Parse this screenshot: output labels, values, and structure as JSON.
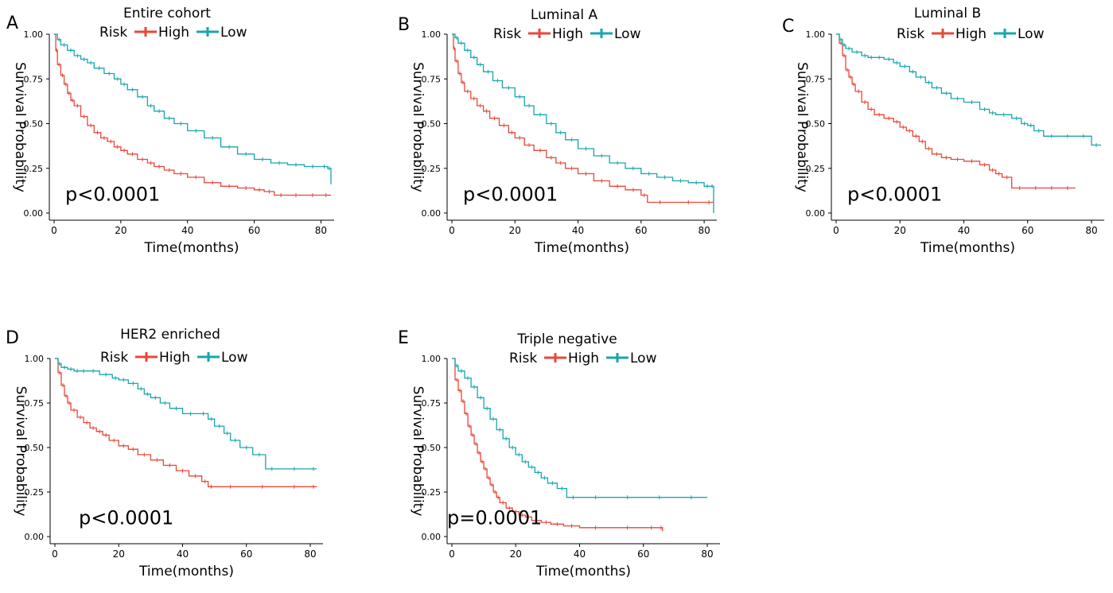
{
  "colors": {
    "high": "#e8473a",
    "low": "#17a6ad",
    "axis": "#000000"
  },
  "chart_data": [
    {
      "type": "line",
      "panel_label": "A",
      "title": "Entire cohort",
      "xlabel": "Time(months)",
      "ylabel": "Survival Probability",
      "xlim": [
        0,
        83
      ],
      "ylim": [
        0,
        1
      ],
      "x_ticks": [
        0,
        20,
        40,
        60,
        80
      ],
      "y_ticks": [
        0.0,
        0.25,
        0.5,
        0.75,
        1.0
      ],
      "y_tick_labels": [
        "0.00",
        "0.25",
        "0.50",
        "0.75",
        "1.00"
      ],
      "legend_title": "Risk",
      "p_value": "p<0.0001",
      "series": [
        {
          "name": "High",
          "color": "#e8473a",
          "x": [
            0,
            0.5,
            1,
            2,
            3,
            4,
            5,
            6,
            8,
            10,
            12,
            14,
            16,
            18,
            20,
            22,
            25,
            28,
            30,
            33,
            36,
            40,
            45,
            50,
            55,
            60,
            63,
            66,
            70,
            75,
            80,
            83
          ],
          "y": [
            1.0,
            0.91,
            0.83,
            0.77,
            0.72,
            0.67,
            0.63,
            0.6,
            0.54,
            0.49,
            0.45,
            0.42,
            0.4,
            0.37,
            0.35,
            0.33,
            0.3,
            0.28,
            0.26,
            0.24,
            0.22,
            0.2,
            0.17,
            0.15,
            0.14,
            0.13,
            0.12,
            0.1,
            0.1,
            0.1,
            0.1,
            0.1
          ]
        },
        {
          "name": "Low",
          "color": "#17a6ad",
          "x": [
            0,
            1,
            2,
            4,
            6,
            8,
            10,
            12,
            15,
            18,
            20,
            22,
            25,
            28,
            30,
            33,
            36,
            40,
            45,
            50,
            55,
            60,
            65,
            70,
            75,
            80,
            82,
            83
          ],
          "y": [
            1.0,
            0.97,
            0.94,
            0.91,
            0.88,
            0.86,
            0.84,
            0.81,
            0.78,
            0.75,
            0.72,
            0.69,
            0.65,
            0.6,
            0.57,
            0.53,
            0.5,
            0.46,
            0.42,
            0.37,
            0.33,
            0.3,
            0.28,
            0.27,
            0.26,
            0.26,
            0.25,
            0.16
          ]
        }
      ]
    },
    {
      "type": "line",
      "panel_label": "B",
      "title": "Luminal A",
      "xlabel": "Time(months)",
      "ylabel": "Survival Probability",
      "xlim": [
        0,
        83
      ],
      "ylim": [
        0,
        1
      ],
      "x_ticks": [
        0,
        20,
        40,
        60,
        80
      ],
      "y_ticks": [
        0.0,
        0.25,
        0.5,
        0.75,
        1.0
      ],
      "y_tick_labels": [
        "0.00",
        "0.25",
        "0.50",
        "0.75",
        "1.00"
      ],
      "legend_title": "Risk",
      "p_value": "p<0.0001",
      "series": [
        {
          "name": "High",
          "color": "#e8473a",
          "x": [
            0,
            0.5,
            1,
            2,
            3,
            4,
            6,
            8,
            10,
            12,
            15,
            18,
            20,
            23,
            26,
            30,
            33,
            36,
            40,
            45,
            50,
            55,
            60,
            62,
            70,
            80,
            83
          ],
          "y": [
            1.0,
            0.92,
            0.85,
            0.78,
            0.73,
            0.68,
            0.64,
            0.6,
            0.57,
            0.53,
            0.49,
            0.45,
            0.42,
            0.38,
            0.35,
            0.31,
            0.28,
            0.25,
            0.22,
            0.18,
            0.15,
            0.13,
            0.1,
            0.06,
            0.06,
            0.06,
            0.06
          ]
        },
        {
          "name": "Low",
          "color": "#17a6ad",
          "x": [
            0,
            1,
            2,
            4,
            6,
            8,
            10,
            13,
            16,
            20,
            23,
            26,
            30,
            33,
            36,
            40,
            45,
            50,
            55,
            60,
            65,
            70,
            75,
            80,
            82,
            83
          ],
          "y": [
            1.0,
            0.98,
            0.95,
            0.91,
            0.87,
            0.83,
            0.79,
            0.74,
            0.7,
            0.65,
            0.6,
            0.55,
            0.5,
            0.45,
            0.41,
            0.36,
            0.32,
            0.28,
            0.25,
            0.22,
            0.2,
            0.18,
            0.17,
            0.15,
            0.15,
            0.0
          ]
        }
      ]
    },
    {
      "type": "line",
      "panel_label": "C",
      "title": "Luminal B",
      "xlabel": "Time(months)",
      "ylabel": "Survival Probability",
      "xlim": [
        0,
        83
      ],
      "ylim": [
        0,
        1
      ],
      "x_ticks": [
        0,
        20,
        40,
        60,
        80
      ],
      "y_ticks": [
        0.0,
        0.25,
        0.5,
        0.75,
        1.0
      ],
      "y_tick_labels": [
        "0.00",
        "0.25",
        "0.50",
        "0.75",
        "1.00"
      ],
      "legend_title": "Risk",
      "p_value": "p<0.0001",
      "series": [
        {
          "name": "High",
          "color": "#e8473a",
          "x": [
            0,
            1,
            2,
            3,
            4,
            5,
            6,
            8,
            10,
            12,
            15,
            18,
            20,
            22,
            24,
            26,
            28,
            30,
            33,
            36,
            40,
            45,
            48,
            50,
            52,
            55,
            60,
            65,
            70,
            75
          ],
          "y": [
            1.0,
            0.95,
            0.88,
            0.8,
            0.76,
            0.72,
            0.68,
            0.62,
            0.58,
            0.55,
            0.53,
            0.51,
            0.48,
            0.46,
            0.43,
            0.4,
            0.36,
            0.33,
            0.31,
            0.3,
            0.29,
            0.27,
            0.24,
            0.22,
            0.2,
            0.14,
            0.14,
            0.14,
            0.14,
            0.14
          ]
        },
        {
          "name": "Low",
          "color": "#17a6ad",
          "x": [
            0,
            1,
            2,
            3,
            5,
            8,
            10,
            12,
            15,
            18,
            20,
            23,
            25,
            28,
            30,
            33,
            36,
            40,
            45,
            48,
            50,
            55,
            58,
            60,
            62,
            65,
            70,
            75,
            80,
            83
          ],
          "y": [
            1.0,
            0.97,
            0.94,
            0.92,
            0.9,
            0.88,
            0.87,
            0.87,
            0.86,
            0.84,
            0.82,
            0.79,
            0.76,
            0.73,
            0.7,
            0.67,
            0.64,
            0.62,
            0.58,
            0.56,
            0.55,
            0.53,
            0.5,
            0.49,
            0.46,
            0.43,
            0.43,
            0.43,
            0.38,
            0.38
          ]
        }
      ]
    },
    {
      "type": "line",
      "panel_label": "D",
      "title": "HER2 enriched",
      "xlabel": "Time(months)",
      "ylabel": "Survival Probability",
      "xlim": [
        0,
        83
      ],
      "ylim": [
        0,
        1
      ],
      "x_ticks": [
        0,
        20,
        40,
        60,
        80
      ],
      "y_ticks": [
        0.0,
        0.25,
        0.5,
        0.75,
        1.0
      ],
      "y_tick_labels": [
        "0.00",
        "0.25",
        "0.50",
        "0.75",
        "1.00"
      ],
      "legend_title": "Risk",
      "p_value": "p<0.0001",
      "series": [
        {
          "name": "High",
          "color": "#e8473a",
          "x": [
            0,
            1,
            2,
            3,
            4,
            5,
            7,
            9,
            11,
            13,
            15,
            17,
            20,
            23,
            26,
            30,
            34,
            38,
            42,
            46,
            48,
            50,
            60,
            70,
            80,
            82
          ],
          "y": [
            1.0,
            0.92,
            0.85,
            0.79,
            0.75,
            0.71,
            0.67,
            0.64,
            0.61,
            0.59,
            0.57,
            0.54,
            0.51,
            0.49,
            0.46,
            0.43,
            0.4,
            0.37,
            0.34,
            0.31,
            0.28,
            0.28,
            0.28,
            0.28,
            0.28,
            0.28
          ]
        },
        {
          "name": "Low",
          "color": "#17a6ad",
          "x": [
            0,
            1,
            2,
            4,
            6,
            8,
            10,
            14,
            18,
            20,
            23,
            26,
            28,
            30,
            33,
            36,
            40,
            45,
            48,
            50,
            53,
            55,
            58,
            62,
            66,
            70,
            80,
            82
          ],
          "y": [
            1.0,
            0.97,
            0.95,
            0.94,
            0.93,
            0.93,
            0.93,
            0.91,
            0.89,
            0.88,
            0.86,
            0.83,
            0.8,
            0.78,
            0.75,
            0.72,
            0.69,
            0.69,
            0.66,
            0.62,
            0.58,
            0.54,
            0.5,
            0.46,
            0.38,
            0.38,
            0.38,
            0.38
          ]
        }
      ]
    },
    {
      "type": "line",
      "panel_label": "E",
      "title": "Triple negative",
      "xlabel": "Time(months)",
      "ylabel": "Survival Probability",
      "xlim": [
        0,
        83
      ],
      "ylim": [
        0,
        1
      ],
      "x_ticks": [
        0,
        20,
        40,
        60,
        80
      ],
      "y_ticks": [
        0.0,
        0.25,
        0.5,
        0.75,
        1.0
      ],
      "y_tick_labels": [
        "0.00",
        "0.25",
        "0.50",
        "0.75",
        "1.00"
      ],
      "legend_title": "Risk",
      "p_value": "p=0.0001",
      "series": [
        {
          "name": "High",
          "color": "#e8473a",
          "x": [
            0,
            1,
            2,
            3,
            4,
            5,
            6,
            7,
            8,
            9,
            10,
            11,
            12,
            13,
            14,
            15,
            17,
            19,
            21,
            23,
            25,
            28,
            31,
            35,
            40,
            50,
            60,
            65,
            66
          ],
          "y": [
            1.0,
            0.88,
            0.82,
            0.76,
            0.69,
            0.62,
            0.57,
            0.52,
            0.47,
            0.42,
            0.38,
            0.33,
            0.29,
            0.25,
            0.22,
            0.19,
            0.16,
            0.14,
            0.12,
            0.11,
            0.09,
            0.08,
            0.07,
            0.06,
            0.05,
            0.05,
            0.05,
            0.05,
            0.03
          ]
        },
        {
          "name": "Low",
          "color": "#17a6ad",
          "x": [
            0,
            1,
            2,
            4,
            6,
            8,
            10,
            12,
            14,
            16,
            18,
            20,
            22,
            24,
            26,
            28,
            30,
            33,
            36,
            40,
            50,
            60,
            70,
            80
          ],
          "y": [
            1.0,
            0.96,
            0.93,
            0.89,
            0.84,
            0.78,
            0.72,
            0.66,
            0.6,
            0.55,
            0.5,
            0.46,
            0.42,
            0.39,
            0.36,
            0.33,
            0.3,
            0.27,
            0.22,
            0.22,
            0.22,
            0.22,
            0.22,
            0.22
          ]
        }
      ]
    }
  ]
}
